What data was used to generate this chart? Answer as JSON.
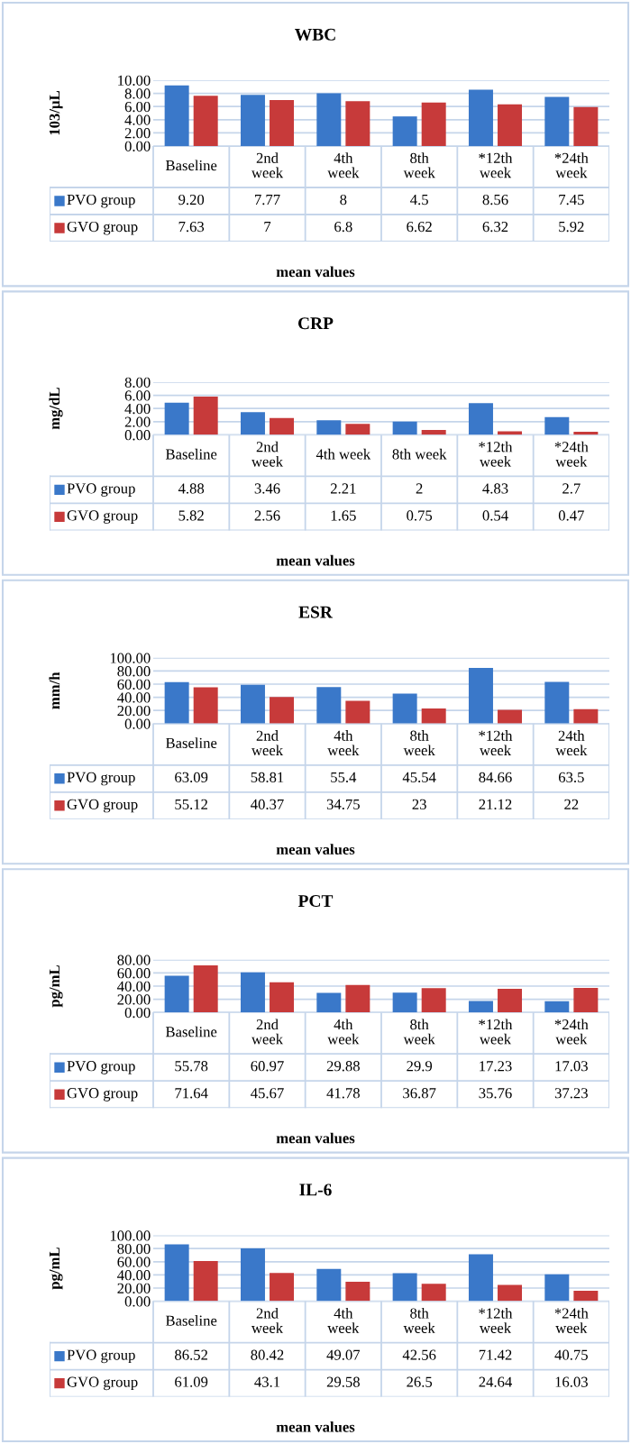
{
  "chart_data": [
    {
      "type": "bar",
      "title": "WBC",
      "ylabel": "103/µL",
      "xlabel": "mean values",
      "grid": "y",
      "legend": "bottom left",
      "categories": [
        "Baseline",
        "2nd\nweek",
        "4th\nweek",
        "8th\nweek",
        "*12th\nweek",
        "*24th\nweek"
      ],
      "ylim": [
        0,
        10
      ],
      "yticks": [
        {
          "value": 0,
          "label": "0.00"
        },
        {
          "value": 2,
          "label": "2.00"
        },
        {
          "value": 4,
          "label": "4.00"
        },
        {
          "value": 6,
          "label": "6.00"
        },
        {
          "value": 8,
          "label": "8.00"
        },
        {
          "value": 10,
          "label": "10.00"
        }
      ],
      "series": [
        {
          "name": "PVO group",
          "color": "#3a78c9",
          "values": [
            9.2,
            7.77,
            8,
            4.5,
            8.56,
            7.45
          ],
          "value_labels": [
            "9.20",
            "7.77",
            "8",
            "4.5",
            "8.56",
            "7.45"
          ]
        },
        {
          "name": "GVO group",
          "color": "#c73a3a",
          "values": [
            7.63,
            7,
            6.8,
            6.62,
            6.32,
            5.92
          ],
          "value_labels": [
            "7.63",
            "7",
            "6.8",
            "6.62",
            "6.32",
            "5.92"
          ]
        }
      ]
    },
    {
      "type": "bar",
      "title": "CRP",
      "ylabel": "mg/dL",
      "xlabel": "mean values",
      "grid": "y",
      "legend": "bottom left",
      "categories": [
        "Baseline",
        "2nd\nweek",
        "4th week",
        "8th week",
        "*12th\nweek",
        "*24th\nweek"
      ],
      "ylim": [
        0,
        8
      ],
      "yticks": [
        {
          "value": 0,
          "label": "0.00"
        },
        {
          "value": 2,
          "label": "2.00"
        },
        {
          "value": 4,
          "label": "4.00"
        },
        {
          "value": 6,
          "label": "6.00"
        },
        {
          "value": 8,
          "label": "8.00"
        }
      ],
      "series": [
        {
          "name": "PVO group",
          "color": "#3a78c9",
          "values": [
            4.88,
            3.46,
            2.21,
            2,
            4.83,
            2.7
          ],
          "value_labels": [
            "4.88",
            "3.46",
            "2.21",
            "2",
            "4.83",
            "2.7"
          ]
        },
        {
          "name": "GVO group",
          "color": "#c73a3a",
          "values": [
            5.82,
            2.56,
            1.65,
            0.75,
            0.54,
            0.47
          ],
          "value_labels": [
            "5.82",
            "2.56",
            "1.65",
            "0.75",
            "0.54",
            "0.47"
          ]
        }
      ]
    },
    {
      "type": "bar",
      "title": "ESR",
      "ylabel": "mm/h",
      "xlabel": "mean values",
      "grid": "y",
      "legend": "bottom left",
      "categories": [
        "Baseline",
        "2nd\nweek",
        "4th\nweek",
        "8th\nweek",
        "*12th\nweek",
        "24th\nweek"
      ],
      "ylim": [
        0,
        100
      ],
      "yticks": [
        {
          "value": 0,
          "label": "0.00"
        },
        {
          "value": 20,
          "label": "20.00"
        },
        {
          "value": 40,
          "label": "40.00"
        },
        {
          "value": 60,
          "label": "60.00"
        },
        {
          "value": 80,
          "label": "80.00"
        },
        {
          "value": 100,
          "label": "100.00"
        }
      ],
      "series": [
        {
          "name": "PVO group",
          "color": "#3a78c9",
          "values": [
            63.09,
            58.81,
            55.4,
            45.54,
            84.66,
            63.5
          ],
          "value_labels": [
            "63.09",
            "58.81",
            "55.4",
            "45.54",
            "84.66",
            "63.5"
          ]
        },
        {
          "name": "GVO group",
          "color": "#c73a3a",
          "values": [
            55.12,
            40.37,
            34.75,
            23,
            21.12,
            22
          ],
          "value_labels": [
            "55.12",
            "40.37",
            "34.75",
            "23",
            "21.12",
            "22"
          ]
        }
      ]
    },
    {
      "type": "bar",
      "title": "PCT",
      "ylabel": "pg/mL",
      "xlabel": "mean values",
      "grid": "y",
      "legend": "bottom left",
      "categories": [
        "Baseline",
        "2nd\nweek",
        "4th\nweek",
        "8th\nweek",
        "*12th\nweek",
        "*24th\nweek"
      ],
      "ylim": [
        0,
        80
      ],
      "yticks": [
        {
          "value": 0,
          "label": "0.00"
        },
        {
          "value": 20,
          "label": "20.00"
        },
        {
          "value": 40,
          "label": "40.00"
        },
        {
          "value": 60,
          "label": "60.00"
        },
        {
          "value": 80,
          "label": "80.00"
        }
      ],
      "series": [
        {
          "name": "PVO group",
          "color": "#3a78c9",
          "values": [
            55.78,
            60.97,
            29.88,
            29.9,
            17.23,
            17.03
          ],
          "value_labels": [
            "55.78",
            "60.97",
            "29.88",
            "29.9",
            "17.23",
            "17.03"
          ]
        },
        {
          "name": "GVO group",
          "color": "#c73a3a",
          "values": [
            71.64,
            45.67,
            41.78,
            36.87,
            35.76,
            37.23
          ],
          "value_labels": [
            "71.64",
            "45.67",
            "41.78",
            "36.87",
            "35.76",
            "37.23"
          ]
        }
      ]
    },
    {
      "type": "bar",
      "title": "IL-6",
      "ylabel": "pg/mL",
      "xlabel": "mean values",
      "grid": "y",
      "legend": "bottom left",
      "categories": [
        "Baseline",
        "2nd\nweek",
        "4th\nweek",
        "8th\nweek",
        "*12th\nweek",
        "*24th\nweek"
      ],
      "ylim": [
        0,
        100
      ],
      "yticks": [
        {
          "value": 0,
          "label": "0.00"
        },
        {
          "value": 20,
          "label": "20.00"
        },
        {
          "value": 40,
          "label": "40.00"
        },
        {
          "value": 60,
          "label": "60.00"
        },
        {
          "value": 80,
          "label": "80.00"
        },
        {
          "value": 100,
          "label": "100.00"
        }
      ],
      "series": [
        {
          "name": "PVO group",
          "color": "#3a78c9",
          "values": [
            86.52,
            80.42,
            49.07,
            42.56,
            71.42,
            40.75
          ],
          "value_labels": [
            "86.52",
            "80.42",
            "49.07",
            "42.56",
            "71.42",
            "40.75"
          ]
        },
        {
          "name": "GVO group",
          "color": "#c73a3a",
          "values": [
            61.09,
            43.1,
            29.58,
            26.5,
            24.64,
            16.03
          ],
          "value_labels": [
            "61.09",
            "43.1",
            "29.58",
            "26.5",
            "24.64",
            "16.03"
          ]
        }
      ]
    }
  ]
}
